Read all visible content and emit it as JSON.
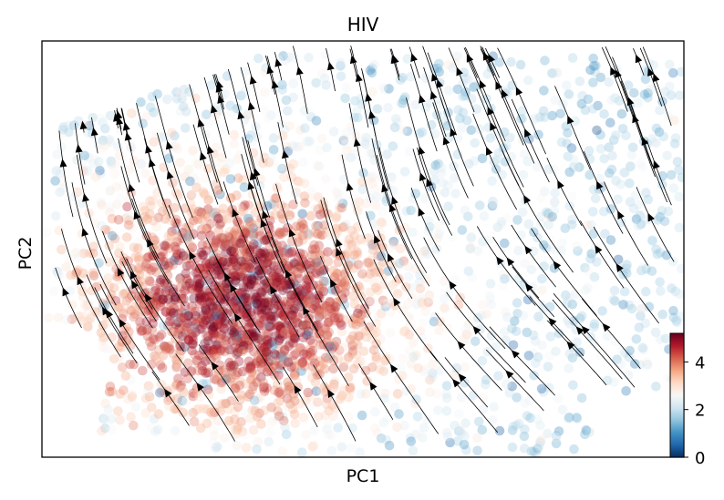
{
  "chart_data": {
    "type": "scatter",
    "title": "HIV",
    "xlabel": "PC1",
    "ylabel": "PC2",
    "x_ticks_shown": false,
    "y_ticks_shown": false,
    "grid": false,
    "overlay": "velocity streamlines with arrowheads (black)",
    "point_opacity": 0.35,
    "points_approx_count": 3000,
    "density_peak": "left-center region of the point cloud",
    "flow_direction": "mostly up and to the right across the cloud",
    "colorbar": {
      "range": [
        0,
        5.2
      ],
      "ticks": [
        {
          "value": 0,
          "label": "0"
        },
        {
          "value": 2,
          "label": "2"
        },
        {
          "value": 4,
          "label": "4"
        }
      ],
      "colormap": "RdBu_r",
      "stops": [
        "#053061",
        "#2166ac",
        "#4393c3",
        "#92c5de",
        "#d1e5f0",
        "#f7f7f7",
        "#fddbc7",
        "#f4a582",
        "#d6604d",
        "#b2182b",
        "#67001f"
      ]
    }
  }
}
